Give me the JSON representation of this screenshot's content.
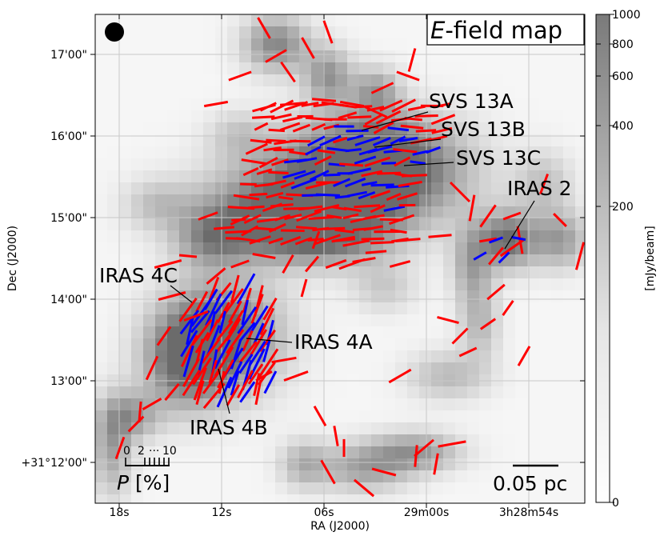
{
  "chart_data": {
    "type": "polarization-map",
    "title": "E-field map",
    "title_parts": {
      "symbol": "E",
      "rest": "-field map"
    },
    "xlabel": "RA (J2000)",
    "ylabel": "Dec (J2000)",
    "x_ticks": [
      "18s",
      "12s",
      "06s",
      "29m00s",
      "3h28m54s"
    ],
    "y_ticks": [
      "+31°12'00\"",
      "13'00\"",
      "14'00\"",
      "15'00\"",
      "16'00\"",
      "17'00\""
    ],
    "colorbar": {
      "label": "[mJy/beam]",
      "ticks": [
        "1000",
        "800",
        "600",
        "400",
        "200",
        "0"
      ],
      "range": [
        0,
        1000
      ],
      "scale": "nonlinear"
    },
    "grid": true,
    "scale_bar": "0.05 pc",
    "polarization_scale": {
      "label_symbol": "P",
      "label_unit": "[%]",
      "tick_labels": [
        "0",
        "2",
        "···",
        "10"
      ]
    },
    "sources": [
      "SVS 13A",
      "SVS 13B",
      "SVS 13C",
      "IRAS 2",
      "IRAS 4C",
      "IRAS 4A",
      "IRAS 4B"
    ],
    "vector_colors": {
      "high_significance": "#0000ff",
      "low_significance": "#ff0000"
    },
    "beam_marker": "filled-black-circle"
  }
}
